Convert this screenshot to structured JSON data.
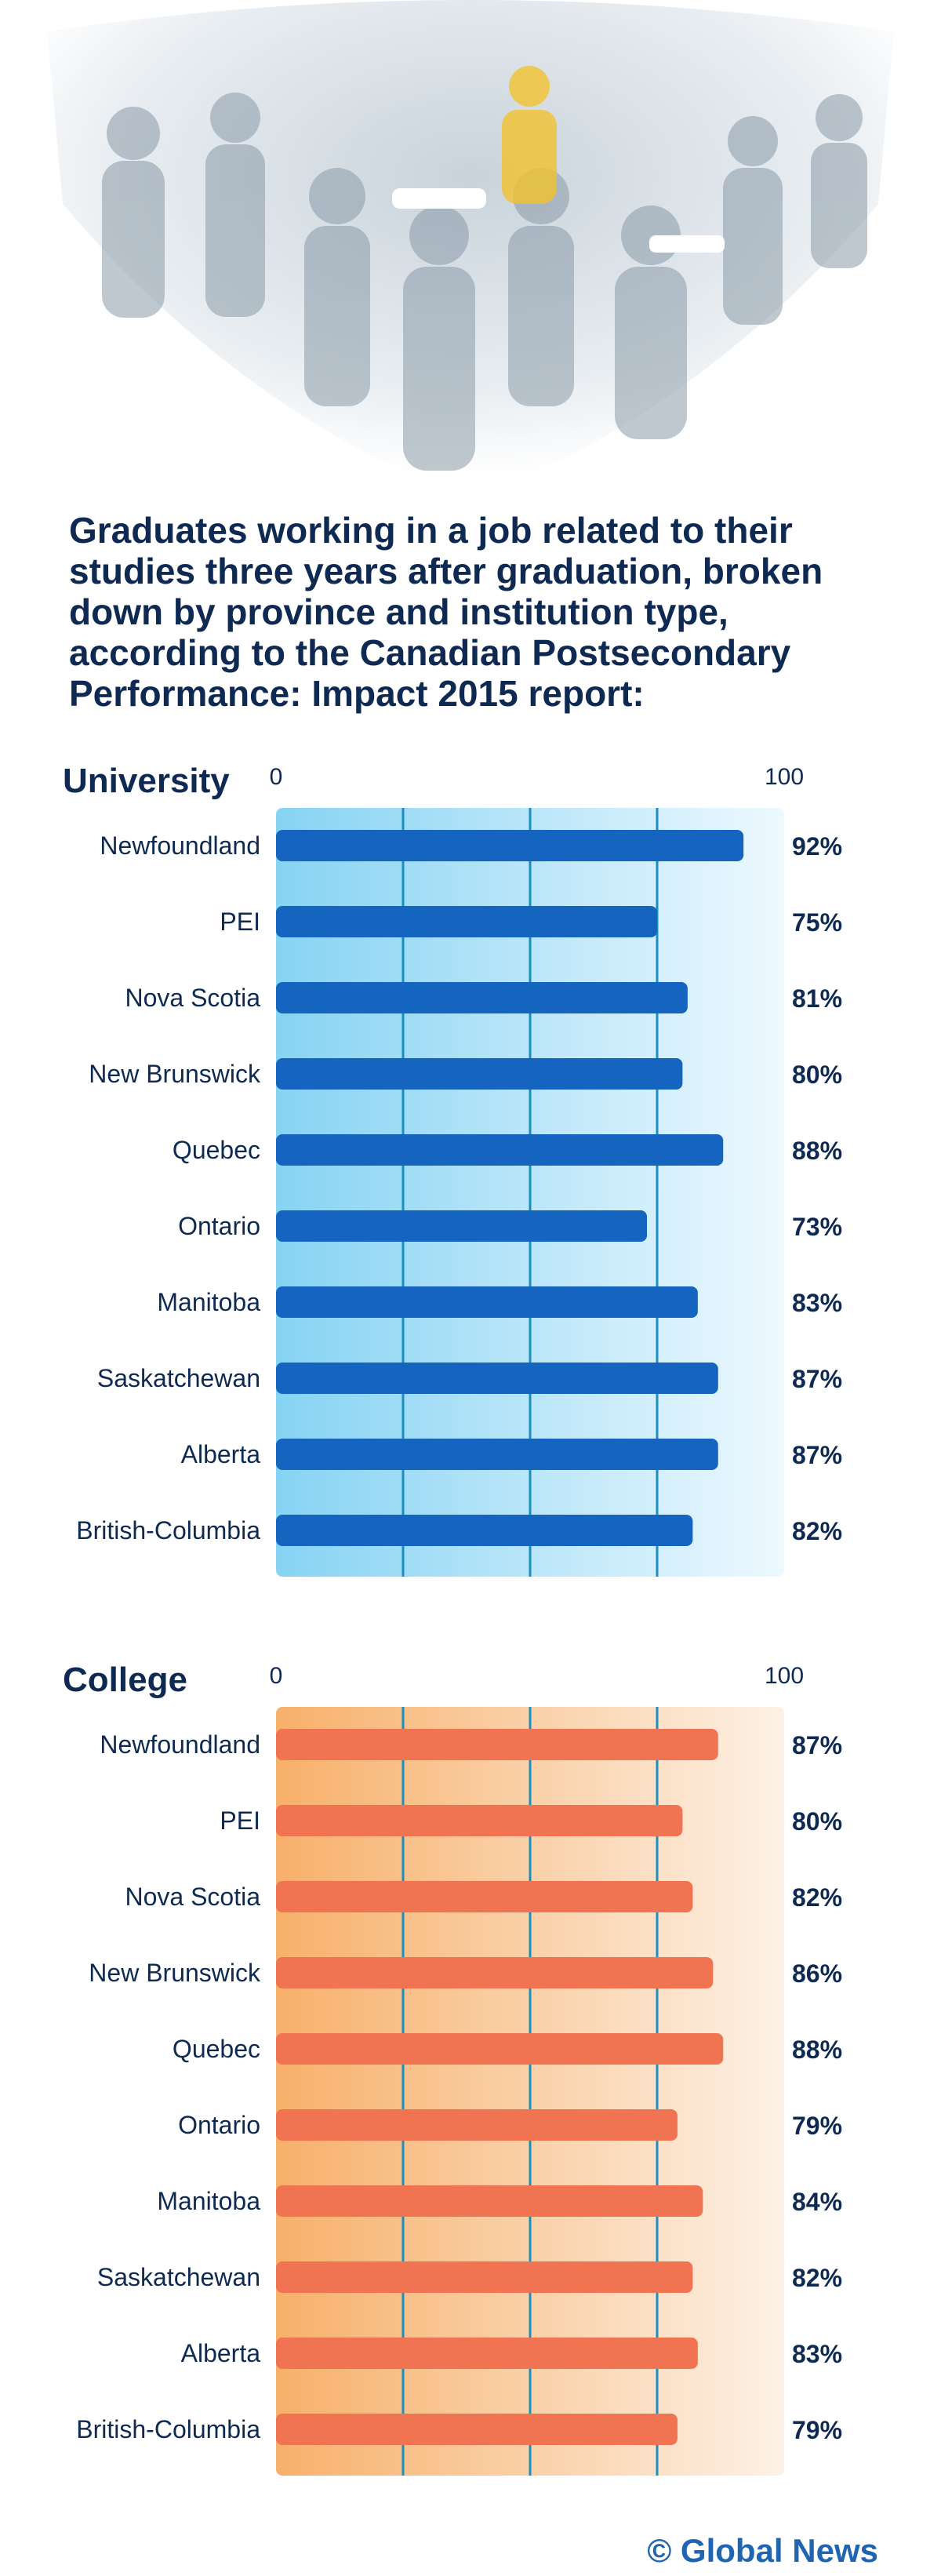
{
  "title_lines": [
    "Graduates working in a job related to their",
    "studies three years after graduation, broken",
    "down by province and institution type,",
    "according to the Canadian Postsecondary",
    "Performance: Impact 2015 report:"
  ],
  "credit": "© Global News",
  "colors": {
    "title": "#0f2a52",
    "university_bar": "#1565c0",
    "university_bg_start": "#86d3f3",
    "university_bg_end": "#eef9ff",
    "college_bar": "#f07352",
    "college_bg_start": "#f7b06a",
    "college_bg_end": "#fdf1e6",
    "gridline": "#1a8fbf",
    "label": "#0f2a52",
    "credit": "#1f65b2"
  },
  "hero_image": {
    "description_icon": "crowd-of-workers-photo"
  },
  "chart_data": [
    {
      "type": "bar",
      "orientation": "horizontal",
      "title": "University",
      "ylim": [
        0,
        100
      ],
      "tick_labels": [
        "0",
        "100"
      ],
      "gridlines": [
        25,
        50,
        75
      ],
      "categories": [
        "Newfoundland",
        "PEI",
        "Nova Scotia",
        "New Brunswick",
        "Quebec",
        "Ontario",
        "Manitoba",
        "Saskatchewan",
        "Alberta",
        "British-Columbia"
      ],
      "values": [
        92,
        75,
        81,
        80,
        88,
        73,
        83,
        87,
        87,
        82
      ],
      "value_labels": [
        "92%",
        "75%",
        "81%",
        "80%",
        "88%",
        "73%",
        "83%",
        "87%",
        "87%",
        "82%"
      ],
      "color": "#1565c0"
    },
    {
      "type": "bar",
      "orientation": "horizontal",
      "title": "College",
      "ylim": [
        0,
        100
      ],
      "tick_labels": [
        "0",
        "100"
      ],
      "gridlines": [
        25,
        50,
        75
      ],
      "categories": [
        "Newfoundland",
        "PEI",
        "Nova Scotia",
        "New Brunswick",
        "Quebec",
        "Ontario",
        "Manitoba",
        "Saskatchewan",
        "Alberta",
        "British-Columbia"
      ],
      "values": [
        87,
        80,
        82,
        86,
        88,
        79,
        84,
        82,
        83,
        79
      ],
      "value_labels": [
        "87%",
        "80%",
        "82%",
        "86%",
        "88%",
        "79%",
        "84%",
        "82%",
        "83%",
        "79%"
      ],
      "color": "#f07352"
    }
  ]
}
